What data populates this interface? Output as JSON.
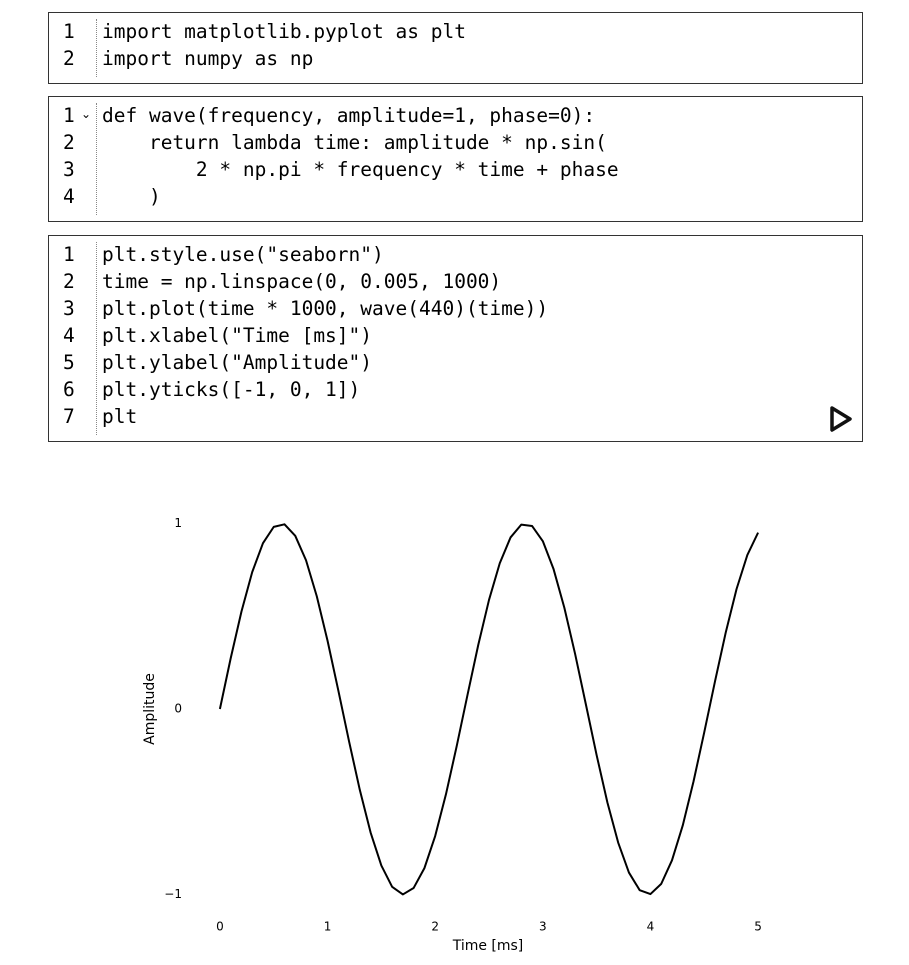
{
  "cells": [
    {
      "lines": [
        {
          "number": 1,
          "code": "import matplotlib.pyplot as plt"
        },
        {
          "number": 2,
          "code": "import numpy as np"
        }
      ]
    },
    {
      "lines": [
        {
          "number": 1,
          "code": "def wave(frequency, amplitude=1, phase=0):"
        },
        {
          "number": 2,
          "code": "    return lambda time: amplitude * np.sin("
        },
        {
          "number": 3,
          "code": "        2 * np.pi * frequency * time + phase"
        },
        {
          "number": 4,
          "code": "    )"
        }
      ]
    },
    {
      "lines": [
        {
          "number": 1,
          "code": "plt.style.use(\"seaborn\")"
        },
        {
          "number": 2,
          "code": "time = np.linspace(0, 0.005, 1000)"
        },
        {
          "number": 3,
          "code": "plt.plot(time * 1000, wave(440)(time))"
        },
        {
          "number": 4,
          "code": "plt.xlabel(\"Time [ms]\")"
        },
        {
          "number": 5,
          "code": "plt.ylabel(\"Amplitude\")"
        },
        {
          "number": 6,
          "code": "plt.yticks([-1, 0, 1])"
        },
        {
          "number": 7,
          "code": "plt"
        }
      ]
    }
  ],
  "chart_data": {
    "type": "line",
    "xlabel": "Time [ms]",
    "ylabel": "Amplitude",
    "x": [
      0,
      0.1,
      0.2,
      0.3,
      0.4,
      0.5,
      0.6,
      0.7,
      0.8,
      0.9,
      1.0,
      1.1,
      1.2,
      1.3,
      1.4,
      1.5,
      1.6,
      1.7,
      1.8,
      1.9,
      2.0,
      2.1,
      2.2,
      2.3,
      2.4,
      2.5,
      2.6,
      2.7,
      2.8,
      2.9,
      3.0,
      3.1,
      3.2,
      3.3,
      3.4,
      3.5,
      3.6,
      3.7,
      3.8,
      3.9,
      4.0,
      4.1,
      4.2,
      4.3,
      4.4,
      4.5,
      4.6,
      4.7,
      4.8,
      4.9,
      5.0
    ],
    "values": [
      0,
      0.273,
      0.525,
      0.738,
      0.894,
      0.982,
      0.996,
      0.934,
      0.802,
      0.608,
      0.368,
      0.1,
      -0.175,
      -0.437,
      -0.666,
      -0.844,
      -0.959,
      -1.0,
      -0.965,
      -0.858,
      -0.685,
      -0.46,
      -0.2,
      0.075,
      0.345,
      0.588,
      0.786,
      0.925,
      0.994,
      0.987,
      0.905,
      0.754,
      0.546,
      0.297,
      0.025,
      -0.249,
      -0.504,
      -0.72,
      -0.882,
      -0.977,
      -0.998,
      -0.943,
      -0.816,
      -0.628,
      -0.391,
      -0.125,
      0.15,
      0.414,
      0.647,
      0.83,
      0.951
    ],
    "color": "#000000",
    "xlim": [
      -0.25,
      5.25
    ],
    "ylim": [
      -1.1,
      1.1
    ],
    "xticks": [
      0,
      1,
      2,
      3,
      4,
      5
    ],
    "yticks": [
      {
        "value": -1,
        "label": "−1"
      },
      0,
      1
    ],
    "grid": false
  }
}
